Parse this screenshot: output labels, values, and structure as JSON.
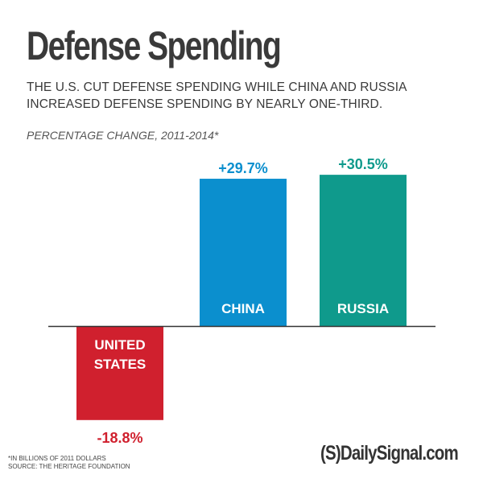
{
  "header": {
    "title": "Defense Spending",
    "subtitle_line1": "THE U.S. CUT DEFENSE SPENDING WHILE CHINA AND RUSSIA",
    "subtitle_line2": "INCREASED DEFENSE SPENDING BY NEARLY ONE-THIRD."
  },
  "chart_data": {
    "type": "bar",
    "title": "Defense Spending",
    "subtitle": "PERCENTAGE CHANGE, 2011-2014*",
    "categories": [
      "UNITED STATES",
      "CHINA",
      "RUSSIA"
    ],
    "category_lines": [
      [
        "UNITED",
        "STATES"
      ],
      [
        "CHINA"
      ],
      [
        "RUSSIA"
      ]
    ],
    "values": [
      -18.8,
      29.7,
      30.5
    ],
    "value_labels": [
      "-18.8%",
      "+29.7%",
      "+30.5%"
    ],
    "colors": [
      "#d0202e",
      "#0b8fce",
      "#0f9a8c"
    ],
    "label_colors": [
      "#d0202e",
      "#0b8fce",
      "#0f9a8c"
    ],
    "xlabel": "",
    "ylabel": "",
    "grid": false,
    "legend": "none"
  },
  "footer": {
    "note_line1": "*IN BILLIONS OF 2011 DOLLARS",
    "note_line2": "SOURCE: THE HERITAGE FOUNDATION",
    "brand": "(S)DailySignal.com"
  }
}
